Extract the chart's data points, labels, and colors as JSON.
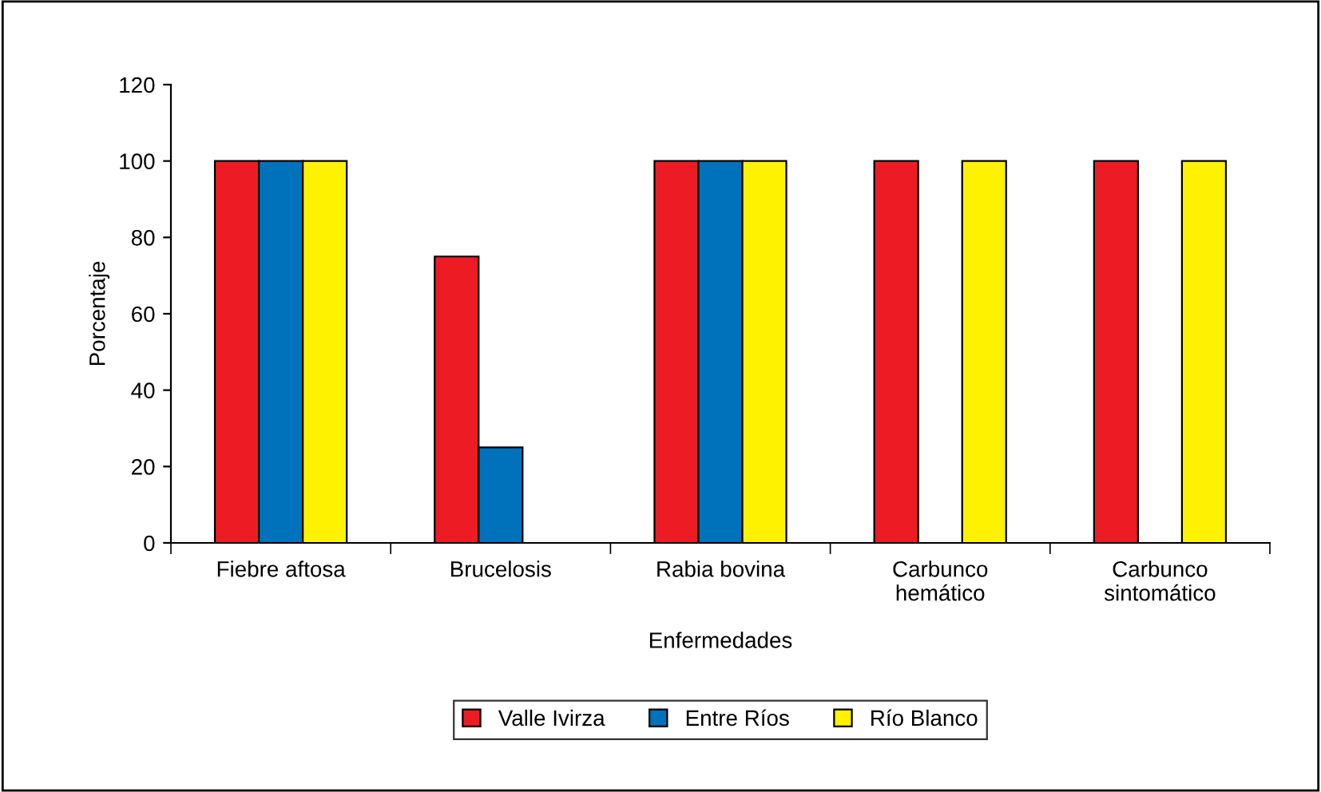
{
  "chart_data": {
    "type": "bar",
    "xlabel": "Enfermedades",
    "ylabel": "Porcentaje",
    "categories": [
      "Fiebre aftosa",
      "Brucelosis",
      "Rabia bovina",
      "Carbunco\nhemático",
      "Carbunco\nsintomático"
    ],
    "series": [
      {
        "name": "Valle Ivirza",
        "color": "#ed1c24",
        "values": [
          100,
          75,
          100,
          100,
          100
        ]
      },
      {
        "name": "Entre Ríos",
        "color": "#0072bc",
        "values": [
          100,
          25,
          100,
          0,
          0
        ]
      },
      {
        "name": "Río Blanco",
        "color": "#fff200",
        "values": [
          100,
          0,
          100,
          100,
          100
        ]
      }
    ],
    "ylim": [
      0,
      120
    ],
    "yticks": [
      0,
      20,
      40,
      60,
      80,
      100,
      120
    ],
    "grid": false,
    "legend": "bottom"
  }
}
